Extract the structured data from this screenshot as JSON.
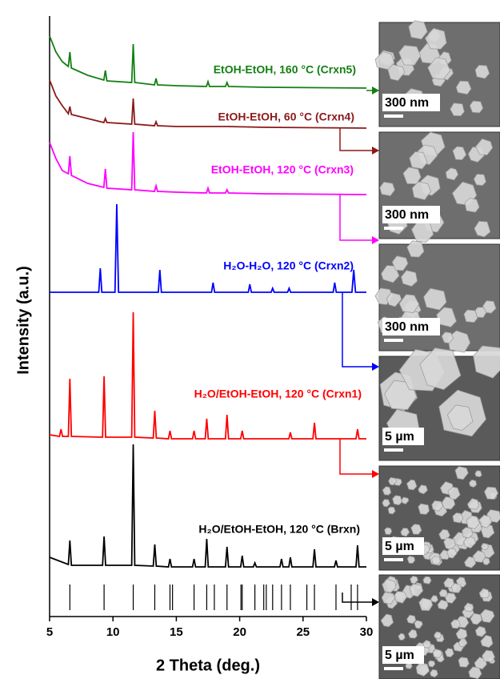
{
  "chart_data": {
    "type": "stacked-line",
    "xlabel": "2 Theta (deg.)",
    "ylabel": "Intensity (a.u.)",
    "xlim": [
      5,
      30
    ],
    "xticks": [
      5,
      10,
      15,
      20,
      25,
      30
    ],
    "series": [
      {
        "name": "EtOH-EtOH, 160 °C (Crxn5)",
        "color": "#138013",
        "x": [
          5,
          5.5,
          6,
          6.48,
          6.6,
          6.72,
          8,
          9.28,
          9.4,
          9.52,
          11.48,
          11.6,
          11.72,
          13.28,
          13.4,
          13.52,
          15,
          17.38,
          17.5,
          17.62,
          18.88,
          19,
          19.12,
          22,
          30
        ],
        "values": [
          65,
          45,
          33,
          27,
          45,
          25,
          16,
          10,
          22,
          9,
          7,
          55,
          7,
          4,
          12,
          4,
          3,
          2,
          8,
          2,
          2,
          7,
          2,
          1,
          0
        ]
      },
      {
        "name": "EtOH-EtOH, 60 °C (Crxn4)",
        "color": "#8b1a1a",
        "x": [
          5,
          5.5,
          6,
          6.48,
          6.6,
          6.72,
          8,
          9.28,
          9.4,
          9.52,
          11.48,
          11.6,
          11.72,
          13.28,
          13.4,
          13.52,
          15,
          19,
          22,
          30
        ],
        "values": [
          60,
          40,
          28,
          18,
          27,
          17,
          12,
          7,
          12,
          7,
          5,
          37,
          5,
          3,
          8,
          3,
          2,
          2,
          1,
          0
        ]
      },
      {
        "name": "EtOH-EtOH, 120 °C (Crxn3)",
        "color": "#ff00ff",
        "x": [
          5,
          5.5,
          6,
          6.48,
          6.6,
          6.72,
          8,
          9.28,
          9.4,
          9.52,
          11.48,
          11.6,
          11.72,
          13.28,
          13.4,
          13.52,
          15,
          17.38,
          17.5,
          17.62,
          18.88,
          19,
          19.12,
          22,
          30
        ],
        "values": [
          65,
          45,
          30,
          26,
          48,
          24,
          14,
          9,
          32,
          8,
          6,
          78,
          6,
          4,
          11,
          4,
          3,
          2,
          8,
          2,
          2,
          6,
          2,
          1,
          0
        ]
      },
      {
        "name": "H₂O-H₂O, 120 °C (Crxn2)",
        "color": "#0000ff",
        "x": [
          5,
          8.88,
          9,
          9.12,
          10.16,
          10.3,
          10.44,
          13.58,
          13.7,
          13.82,
          17.78,
          17.9,
          18.02,
          20.68,
          20.8,
          20.92,
          22.48,
          22.6,
          22.72,
          23.78,
          23.9,
          24.02,
          27.38,
          27.5,
          27.62,
          28.86,
          29,
          29.14,
          30
        ],
        "values": [
          0,
          0,
          30,
          0,
          0,
          110,
          0,
          0,
          28,
          0,
          0,
          12,
          0,
          0,
          10,
          0,
          0,
          5,
          0,
          0,
          5,
          0,
          0,
          12,
          0,
          0,
          28,
          0,
          0
        ]
      },
      {
        "name": "H₂O/EtOH-EtOH, 120 °C (Crxn1)",
        "color": "#ff0000",
        "x": [
          5,
          5.78,
          5.9,
          6.02,
          6.48,
          6.6,
          6.72,
          9.18,
          9.3,
          9.42,
          11.48,
          11.6,
          11.72,
          13.18,
          13.3,
          13.42,
          14.38,
          14.5,
          14.62,
          16.28,
          16.4,
          16.52,
          17.28,
          17.4,
          17.52,
          18.88,
          19,
          19.12,
          20.08,
          20.2,
          20.32,
          23.88,
          24,
          24.12,
          25.78,
          25.9,
          26.02,
          29.18,
          29.3,
          29.42,
          30
        ],
        "values": [
          5,
          3,
          12,
          3,
          3,
          75,
          3,
          2,
          78,
          2,
          2,
          158,
          2,
          1,
          35,
          1,
          0,
          10,
          0,
          0,
          10,
          0,
          0,
          25,
          0,
          0,
          30,
          0,
          0,
          10,
          0,
          0,
          8,
          0,
          0,
          20,
          0,
          0,
          12,
          0,
          0
        ]
      },
      {
        "name": "H₂O/EtOH-EtOH, 120 °C (Brxn)",
        "color": "#000000",
        "x": [
          5,
          6.48,
          6.6,
          6.72,
          9.18,
          9.3,
          9.42,
          11.48,
          11.6,
          11.72,
          13.18,
          13.3,
          13.42,
          14.38,
          14.5,
          14.62,
          16.28,
          16.4,
          16.52,
          17.28,
          17.4,
          17.52,
          18.88,
          19,
          19.12,
          20.08,
          20.2,
          20.32,
          21.08,
          21.2,
          21.32,
          23.18,
          23.3,
          23.42,
          23.88,
          24,
          24.12,
          25.78,
          25.9,
          26.02,
          27.48,
          27.6,
          27.72,
          29.18,
          29.3,
          29.42,
          30
        ],
        "values": [
          12,
          3,
          33,
          2,
          2,
          38,
          2,
          2,
          153,
          2,
          1,
          28,
          1,
          0,
          10,
          0,
          0,
          10,
          0,
          0,
          35,
          0,
          0,
          25,
          0,
          0,
          14,
          0,
          0,
          5,
          0,
          0,
          10,
          0,
          0,
          12,
          0,
          0,
          22,
          0,
          0,
          8,
          0,
          0,
          27,
          0,
          0
        ]
      }
    ],
    "reference": {
      "x": [
        6.6,
        9.3,
        11.6,
        13.3,
        14.5,
        14.7,
        16.4,
        17.4,
        18.0,
        19.0,
        20.1,
        20.2,
        21.2,
        21.9,
        22.1,
        22.6,
        23.3,
        24.0,
        25.3,
        25.9,
        27.6,
        28.8,
        29.3
      ]
    },
    "images": [
      {
        "scale_label": "300 nm"
      },
      {
        "scale_label": "300 nm"
      },
      {
        "scale_label": "300 nm"
      },
      {
        "scale_label": "5 µm"
      },
      {
        "scale_label": "5 µm"
      },
      {
        "scale_label": "5 µm"
      }
    ]
  }
}
